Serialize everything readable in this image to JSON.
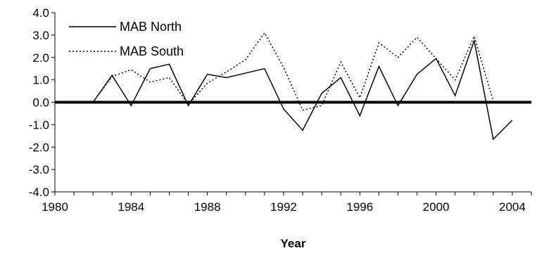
{
  "chart_data": {
    "type": "line",
    "title": "",
    "xlabel": "Year",
    "ylabel": "",
    "xlim": [
      1980,
      2005
    ],
    "ylim": [
      -4.0,
      4.0
    ],
    "x_ticks": [
      "1980",
      "1984",
      "1988",
      "1992",
      "1996",
      "2000",
      "2004"
    ],
    "y_ticks": [
      "4.0",
      "3.0",
      "2.0",
      "1.0",
      "0.0",
      "-1.0",
      "-2.0",
      "-3.0",
      "-4.0"
    ],
    "zero_line": true,
    "grid": false,
    "legend_position": "top-left",
    "x": [
      1982,
      1983,
      1984,
      1985,
      1986,
      1987,
      1988,
      1989,
      1990,
      1991,
      1992,
      1993,
      1994,
      1995,
      1996,
      1997,
      1998,
      1999,
      2000,
      2001,
      2002,
      2003,
      2004
    ],
    "series": [
      {
        "name": "MAB North",
        "style": "solid",
        "values": [
          0.0,
          1.2,
          -0.15,
          1.5,
          1.7,
          -0.15,
          1.25,
          1.1,
          1.3,
          1.5,
          -0.3,
          -1.25,
          0.4,
          1.1,
          -0.6,
          1.6,
          -0.15,
          1.25,
          1.95,
          0.3,
          2.75,
          -1.65,
          -0.8
        ]
      },
      {
        "name": "MAB South",
        "style": "dotted",
        "values": [
          0.0,
          1.15,
          1.45,
          0.9,
          1.1,
          -0.1,
          0.85,
          1.35,
          1.9,
          3.1,
          1.55,
          -0.35,
          -0.15,
          1.8,
          0.2,
          2.65,
          2.0,
          2.9,
          1.95,
          1.0,
          2.95,
          0.05,
          null
        ]
      }
    ]
  }
}
